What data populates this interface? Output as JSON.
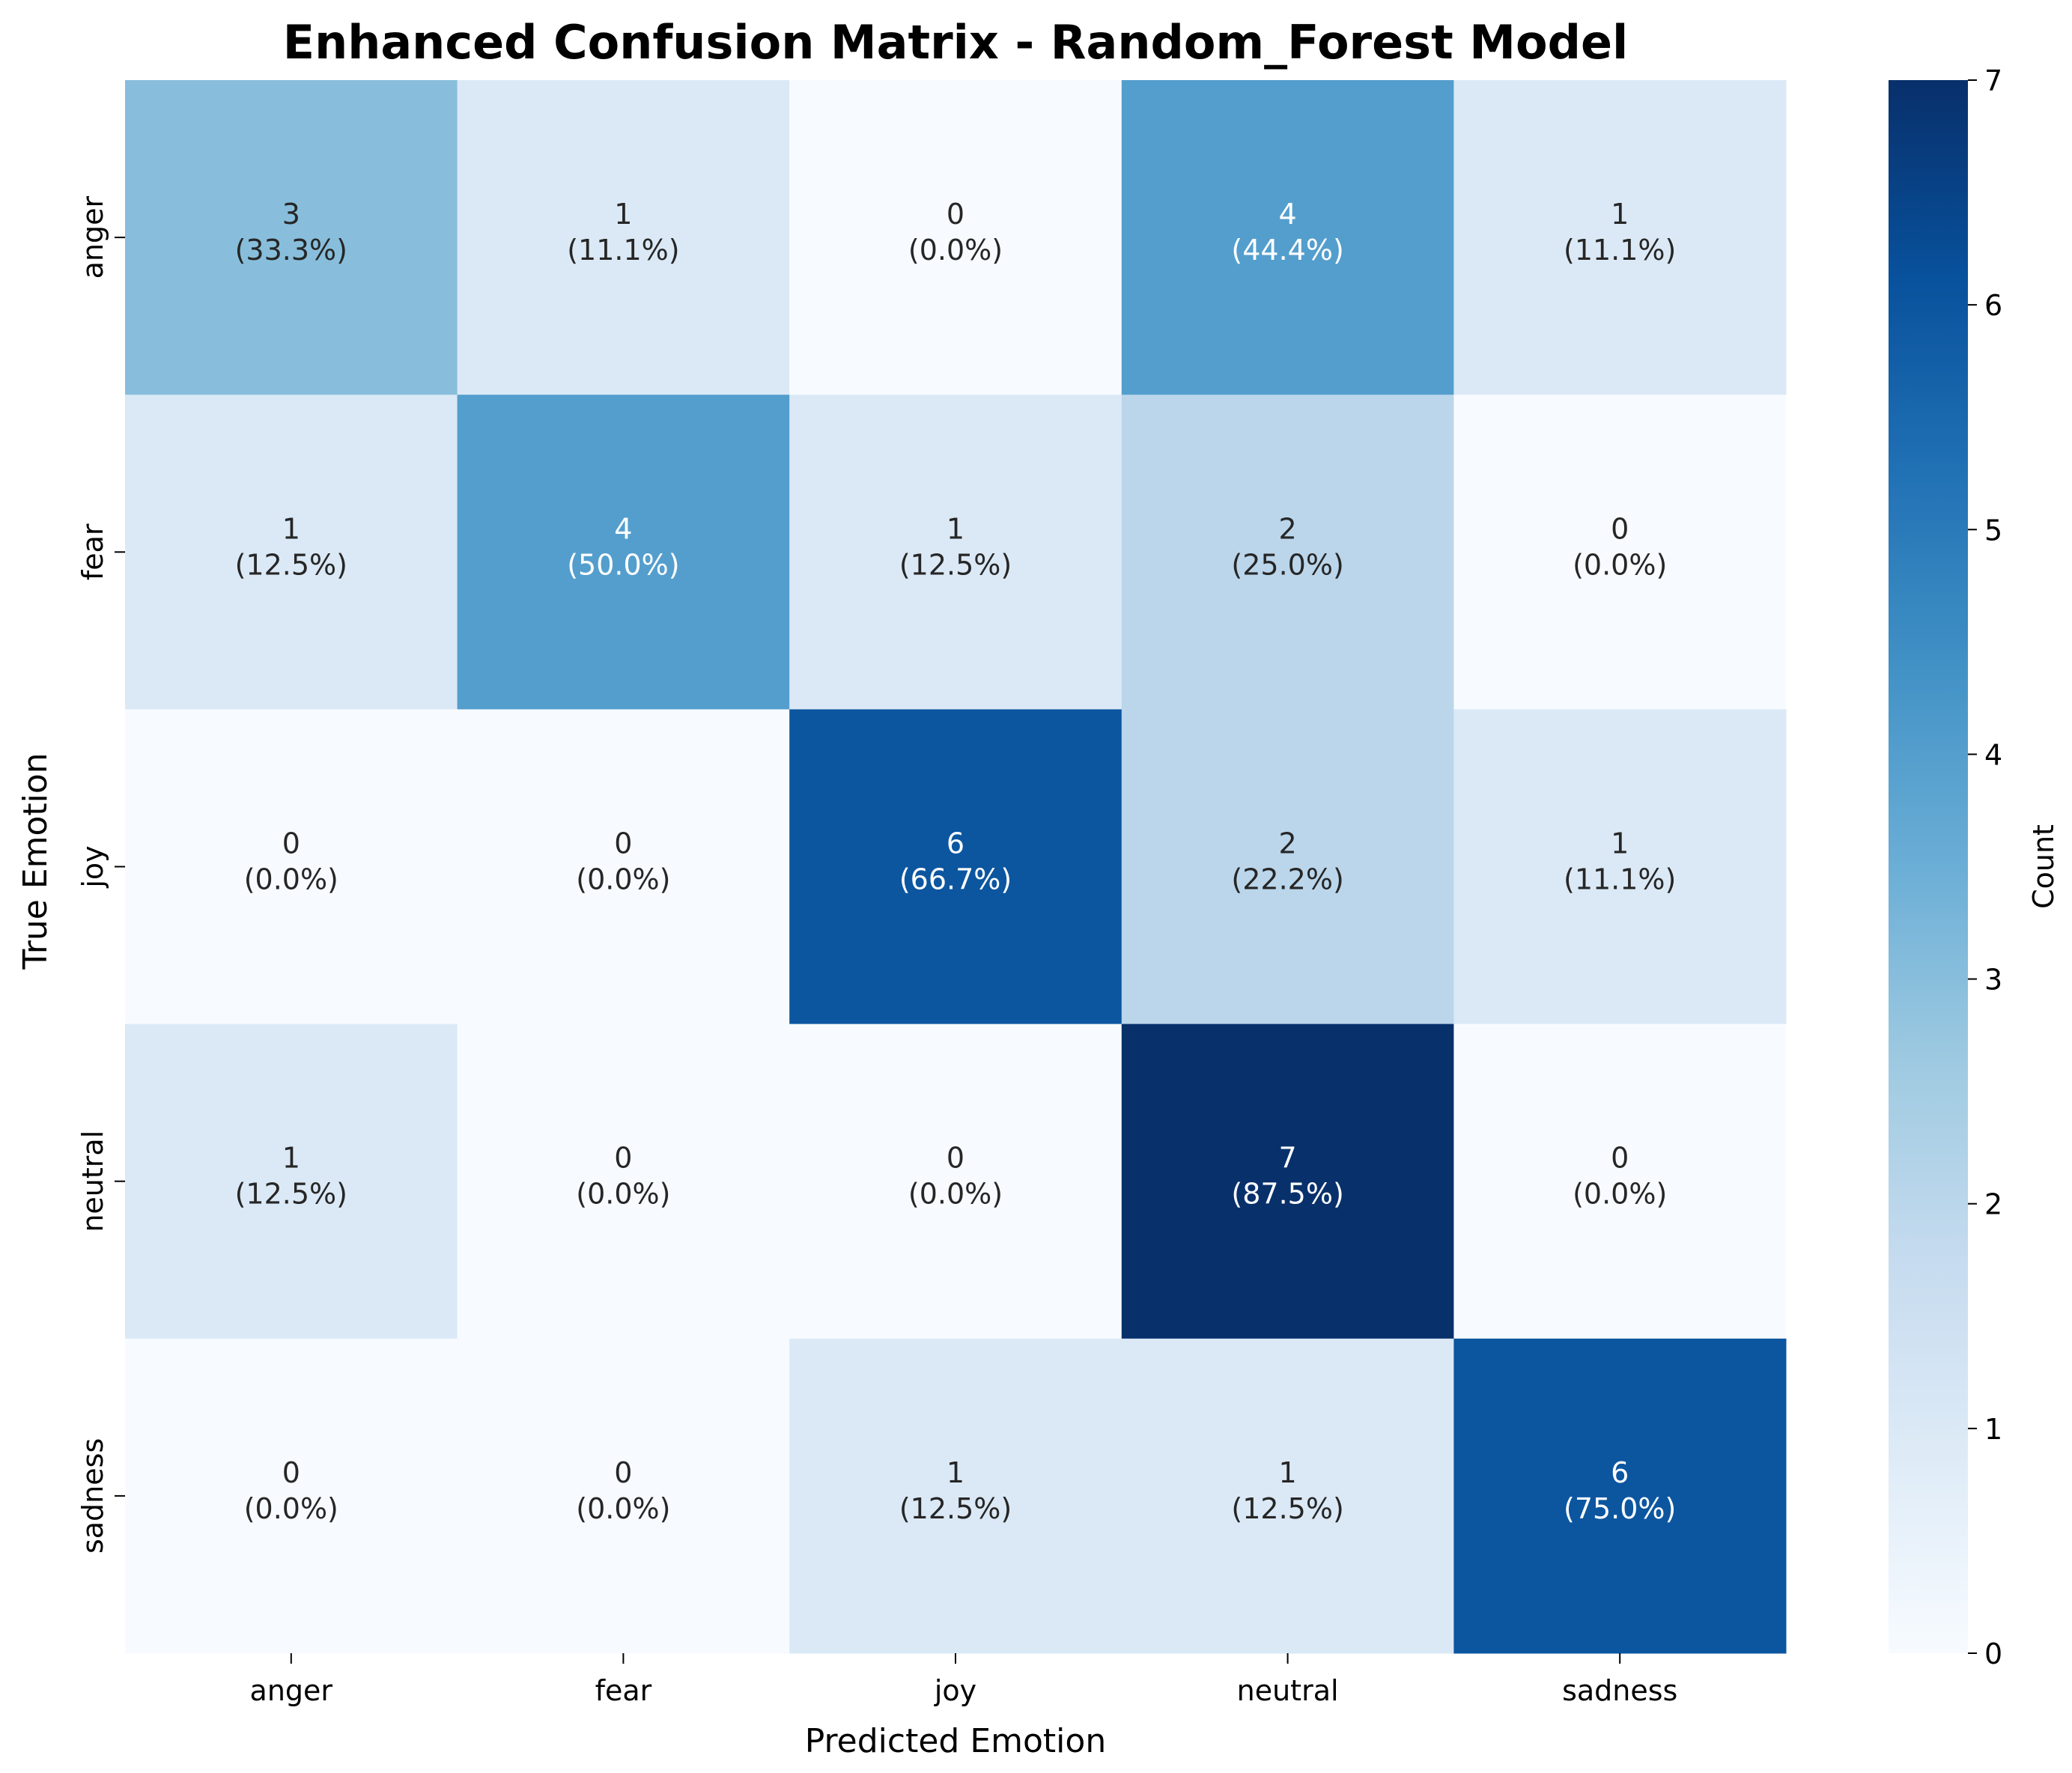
{
  "chart_data": {
    "type": "heatmap",
    "title": "Enhanced Confusion Matrix - Random_Forest Model",
    "xlabel": "Predicted Emotion",
    "ylabel": "True Emotion",
    "x_categories": [
      "anger",
      "fear",
      "joy",
      "neutral",
      "sadness"
    ],
    "y_categories": [
      "anger",
      "fear",
      "joy",
      "neutral",
      "sadness"
    ],
    "values": [
      [
        3,
        1,
        0,
        4,
        1
      ],
      [
        1,
        4,
        1,
        2,
        0
      ],
      [
        0,
        0,
        6,
        2,
        1
      ],
      [
        1,
        0,
        0,
        7,
        0
      ],
      [
        0,
        0,
        1,
        1,
        6
      ]
    ],
    "percent_labels": [
      [
        "(33.3%)",
        "(11.1%)",
        "(0.0%)",
        "(44.4%)",
        "(11.1%)"
      ],
      [
        "(12.5%)",
        "(50.0%)",
        "(12.5%)",
        "(25.0%)",
        "(0.0%)"
      ],
      [
        "(0.0%)",
        "(0.0%)",
        "(66.7%)",
        "(22.2%)",
        "(11.1%)"
      ],
      [
        "(12.5%)",
        "(0.0%)",
        "(0.0%)",
        "(87.5%)",
        "(0.0%)"
      ],
      [
        "(0.0%)",
        "(0.0%)",
        "(12.5%)",
        "(12.5%)",
        "(75.0%)"
      ]
    ],
    "colorbar": {
      "label": "Count",
      "range": [
        0,
        7
      ],
      "ticks": [
        "0",
        "1",
        "2",
        "3",
        "4",
        "5",
        "6",
        "7"
      ],
      "colormap": "Blues"
    },
    "grid": false
  }
}
